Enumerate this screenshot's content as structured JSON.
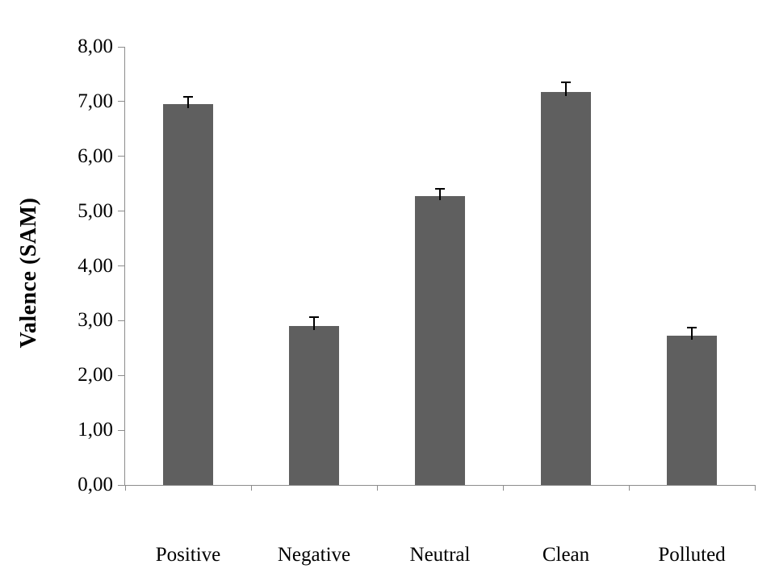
{
  "chart_data": {
    "type": "bar",
    "title": "",
    "xlabel": "",
    "ylabel": "Valence (SAM)",
    "categories": [
      "Positive",
      "Negative",
      "Neutral",
      "Clean",
      "Polluted"
    ],
    "values": [
      6.96,
      2.9,
      5.28,
      7.17,
      2.72
    ],
    "errors": [
      0.13,
      0.16,
      0.13,
      0.18,
      0.15
    ],
    "ylim": [
      0,
      8
    ],
    "ytick_step": 1,
    "ytick_labels": [
      "0,00",
      "1,00",
      "2,00",
      "3,00",
      "4,00",
      "5,00",
      "6,00",
      "7,00",
      "8,00"
    ],
    "decimal_separator": ",",
    "grid": false,
    "legend": false,
    "colors": {
      "bar_fill": "#5f5f5f",
      "axis_line": "#8c8c8c",
      "error_bar": "#000000",
      "text": "#000000",
      "background": "#ffffff"
    }
  }
}
